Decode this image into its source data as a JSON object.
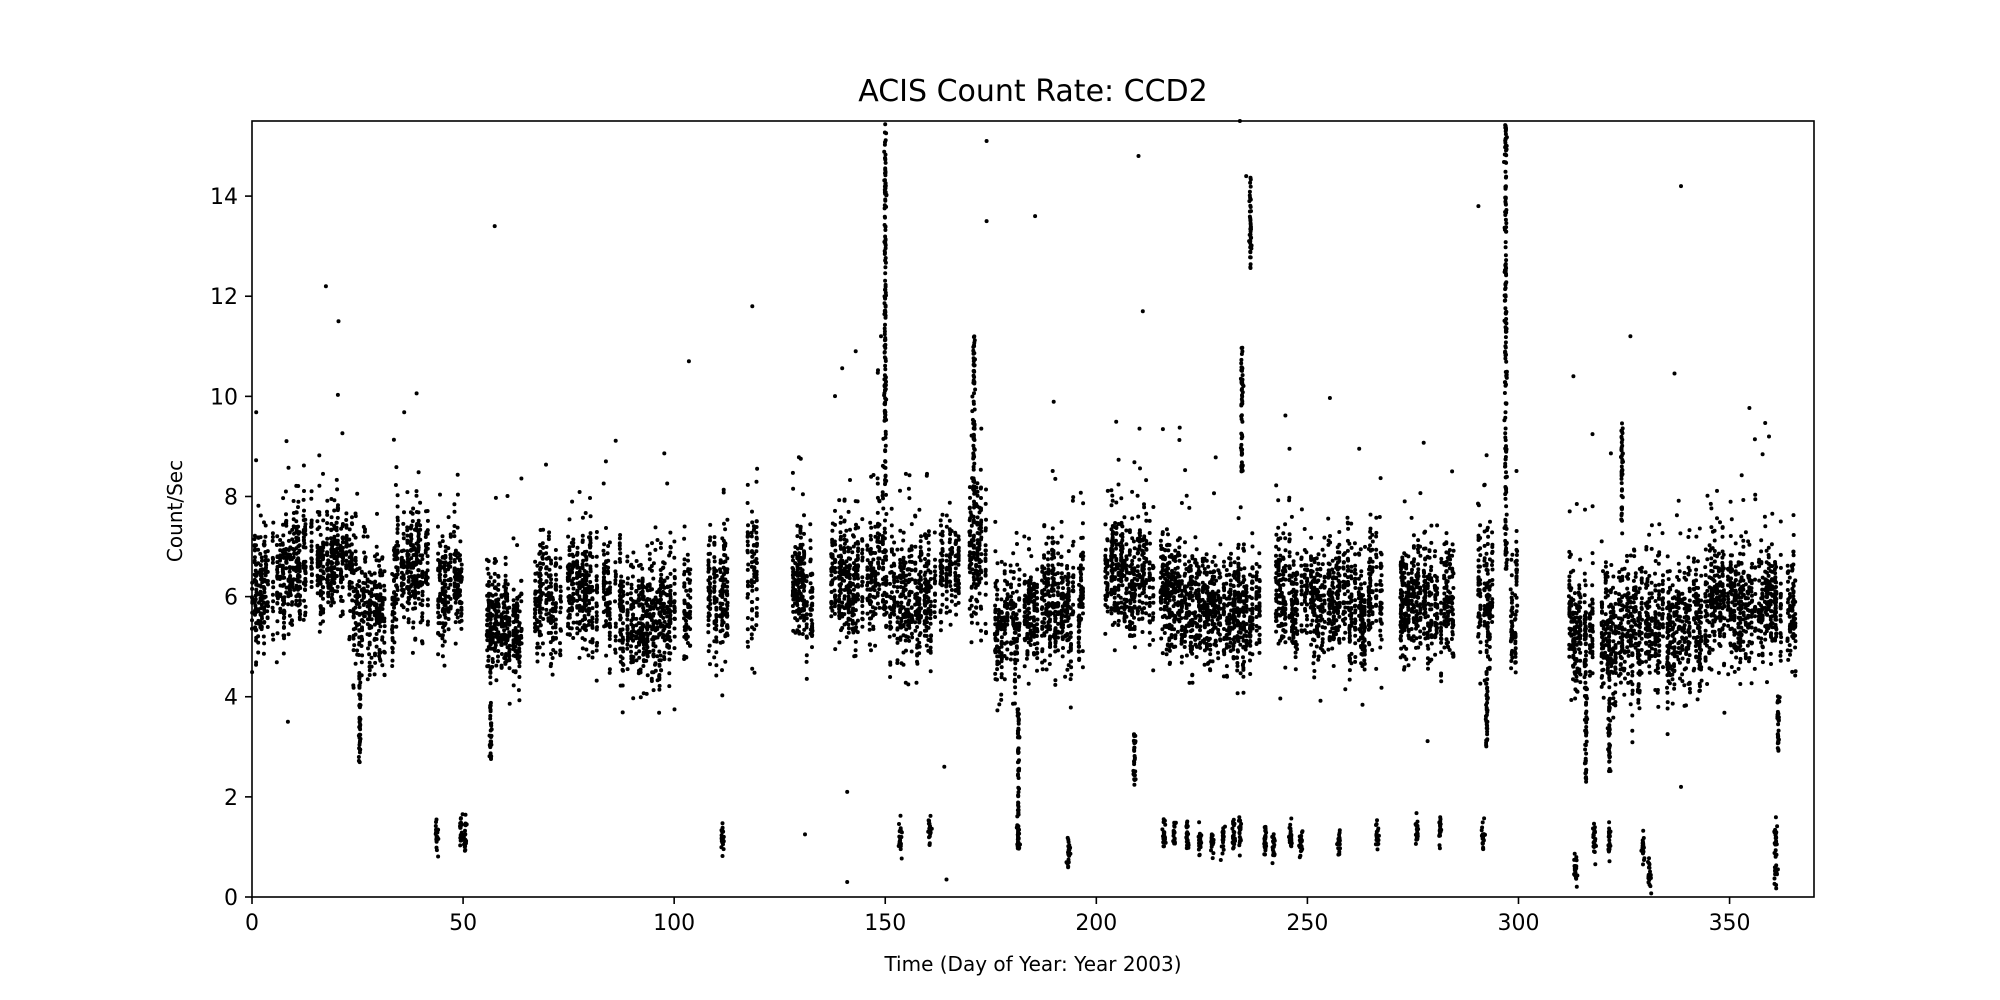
{
  "chart_data": {
    "type": "scatter",
    "title": "ACIS Count Rate: CCD2",
    "xlabel": "Time (Day of Year: Year 2003)",
    "ylabel": "Count/Sec",
    "xlim": [
      0,
      370
    ],
    "ylim": [
      0,
      15.5
    ],
    "xticks": [
      0,
      50,
      100,
      150,
      200,
      250,
      300,
      350
    ],
    "yticks": [
      0,
      2,
      4,
      6,
      8,
      10,
      12,
      14
    ],
    "grid": false,
    "marker_color": "#000000",
    "clusters": [
      {
        "x0": 0,
        "x1": 8,
        "mean": 6.3,
        "spread": 1.0
      },
      {
        "x0": 8,
        "x1": 24,
        "mean": 6.6,
        "spread": 0.9
      },
      {
        "x0": 24,
        "x1": 34,
        "mean": 5.8,
        "spread": 1.0
      },
      {
        "x0": 34,
        "x1": 42,
        "mean": 6.5,
        "spread": 1.0
      },
      {
        "x0": 44,
        "x1": 50,
        "mean": 6.2,
        "spread": 0.9
      },
      {
        "x0": 55,
        "x1": 64,
        "mean": 5.4,
        "spread": 0.9
      },
      {
        "x0": 67,
        "x1": 85,
        "mean": 6.0,
        "spread": 1.0
      },
      {
        "x0": 86,
        "x1": 104,
        "mean": 5.6,
        "spread": 1.0
      },
      {
        "x0": 108,
        "x1": 113,
        "mean": 6.0,
        "spread": 1.1
      },
      {
        "x0": 117,
        "x1": 120,
        "mean": 6.5,
        "spread": 1.5
      },
      {
        "x0": 128,
        "x1": 133,
        "mean": 6.0,
        "spread": 1.0
      },
      {
        "x0": 137,
        "x1": 148,
        "mean": 6.3,
        "spread": 1.0
      },
      {
        "x0": 148,
        "x1": 151,
        "mean": 6.6,
        "spread": 1.2
      },
      {
        "x0": 151,
        "x1": 158,
        "mean": 5.8,
        "spread": 1.0
      },
      {
        "x0": 158,
        "x1": 162,
        "mean": 6.1,
        "spread": 0.9
      },
      {
        "x0": 163,
        "x1": 168,
        "mean": 6.5,
        "spread": 0.9
      },
      {
        "x0": 170,
        "x1": 174,
        "mean": 6.8,
        "spread": 1.2
      },
      {
        "x0": 176,
        "x1": 182,
        "mean": 5.3,
        "spread": 1.0
      },
      {
        "x0": 183,
        "x1": 197,
        "mean": 5.8,
        "spread": 1.0
      },
      {
        "x0": 202,
        "x1": 212,
        "mean": 6.6,
        "spread": 1.0
      },
      {
        "x0": 212,
        "x1": 220,
        "mean": 5.9,
        "spread": 1.0
      },
      {
        "x0": 220,
        "x1": 240,
        "mean": 5.7,
        "spread": 1.0
      },
      {
        "x0": 242,
        "x1": 268,
        "mean": 5.9,
        "spread": 1.0
      },
      {
        "x0": 272,
        "x1": 285,
        "mean": 5.8,
        "spread": 1.0
      },
      {
        "x0": 290,
        "x1": 294,
        "mean": 6.0,
        "spread": 1.3
      },
      {
        "x0": 298,
        "x1": 300,
        "mean": 5.7,
        "spread": 0.8
      },
      {
        "x0": 312,
        "x1": 315,
        "mean": 5.4,
        "spread": 1.0
      },
      {
        "x0": 315,
        "x1": 330,
        "mean": 5.3,
        "spread": 1.1
      },
      {
        "x0": 330,
        "x1": 345,
        "mean": 5.4,
        "spread": 1.0
      },
      {
        "x0": 345,
        "x1": 366,
        "mean": 5.8,
        "spread": 1.0
      }
    ],
    "vertical_streaks": [
      {
        "x": 25.5,
        "ymin": 2.6,
        "ymax": 4.5
      },
      {
        "x": 56.5,
        "ymin": 2.7,
        "ymax": 4.0
      },
      {
        "x": 150,
        "ymin": 8.0,
        "ymax": 15.5
      },
      {
        "x": 171,
        "ymin": 8.0,
        "ymax": 11.3
      },
      {
        "x": 181.5,
        "ymin": 1.0,
        "ymax": 3.8
      },
      {
        "x": 209,
        "ymin": 2.2,
        "ymax": 3.3
      },
      {
        "x": 234.5,
        "ymin": 8.5,
        "ymax": 11.3
      },
      {
        "x": 236.5,
        "ymin": 12.5,
        "ymax": 14.4
      },
      {
        "x": 292.5,
        "ymin": 2.9,
        "ymax": 4.5
      },
      {
        "x": 297,
        "ymin": 6.5,
        "ymax": 15.5
      },
      {
        "x": 316,
        "ymin": 2.3,
        "ymax": 4.2
      },
      {
        "x": 321.5,
        "ymin": 2.5,
        "ymax": 4.0
      },
      {
        "x": 324.5,
        "ymin": 7.5,
        "ymax": 9.5
      },
      {
        "x": 361.5,
        "ymin": 2.9,
        "ymax": 4.1
      }
    ],
    "low_clusters": [
      {
        "x": 43.8,
        "y": 1.2
      },
      {
        "x": 49.5,
        "y": 1.25
      },
      {
        "x": 50.5,
        "y": 1.2
      },
      {
        "x": 111.5,
        "y": 1.2
      },
      {
        "x": 153.5,
        "y": 1.2
      },
      {
        "x": 160.5,
        "y": 1.35
      },
      {
        "x": 181.5,
        "y": 1.15
      },
      {
        "x": 193.5,
        "y": 0.85
      },
      {
        "x": 216,
        "y": 1.25
      },
      {
        "x": 218.5,
        "y": 1.2
      },
      {
        "x": 221.5,
        "y": 1.25
      },
      {
        "x": 224.5,
        "y": 1.1
      },
      {
        "x": 227.5,
        "y": 1.1
      },
      {
        "x": 230,
        "y": 1.15
      },
      {
        "x": 232.5,
        "y": 1.2
      },
      {
        "x": 234,
        "y": 1.3
      },
      {
        "x": 240,
        "y": 1.1
      },
      {
        "x": 242,
        "y": 1.0
      },
      {
        "x": 246,
        "y": 1.2
      },
      {
        "x": 248.5,
        "y": 1.1
      },
      {
        "x": 257.5,
        "y": 1.15
      },
      {
        "x": 266.5,
        "y": 1.2
      },
      {
        "x": 276,
        "y": 1.3
      },
      {
        "x": 281.5,
        "y": 1.35
      },
      {
        "x": 291.5,
        "y": 1.25
      },
      {
        "x": 313.5,
        "y": 0.55
      },
      {
        "x": 318,
        "y": 1.1
      },
      {
        "x": 321.5,
        "y": 1.1
      },
      {
        "x": 329.5,
        "y": 1.0
      },
      {
        "x": 331,
        "y": 0.45
      },
      {
        "x": 361,
        "y": 1.2
      },
      {
        "x": 361,
        "y": 0.5
      }
    ],
    "outliers": [
      {
        "x": 17.5,
        "y": 12.2
      },
      {
        "x": 20.5,
        "y": 11.5
      },
      {
        "x": 57.5,
        "y": 13.4
      },
      {
        "x": 118.5,
        "y": 11.8
      },
      {
        "x": 149,
        "y": 11.2
      },
      {
        "x": 174,
        "y": 15.1
      },
      {
        "x": 174,
        "y": 13.5
      },
      {
        "x": 185.5,
        "y": 13.6
      },
      {
        "x": 210,
        "y": 14.8
      },
      {
        "x": 211,
        "y": 11.7
      },
      {
        "x": 234,
        "y": 15.5
      },
      {
        "x": 235.5,
        "y": 14.4
      },
      {
        "x": 290.5,
        "y": 13.8
      },
      {
        "x": 313,
        "y": 10.4
      },
      {
        "x": 326.5,
        "y": 11.2
      },
      {
        "x": 338.5,
        "y": 14.2
      },
      {
        "x": 141,
        "y": 2.1
      },
      {
        "x": 141,
        "y": 0.3
      },
      {
        "x": 164.5,
        "y": 0.35
      },
      {
        "x": 164,
        "y": 2.6
      },
      {
        "x": 131,
        "y": 1.25
      },
      {
        "x": 8.5,
        "y": 3.5
      },
      {
        "x": 103.5,
        "y": 10.7
      },
      {
        "x": 143,
        "y": 10.9
      },
      {
        "x": 338.5,
        "y": 2.2
      }
    ]
  }
}
